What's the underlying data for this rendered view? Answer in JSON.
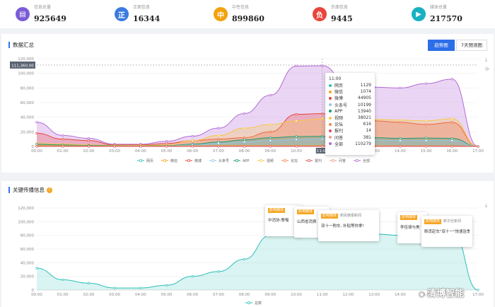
{
  "stats": [
    {
      "glyph": "▤",
      "label": "信息总量",
      "value": "925649",
      "color": "#7b5cd6"
    },
    {
      "glyph": "正",
      "label": "正面信息",
      "value": "16344",
      "color": "#3b7be0"
    },
    {
      "glyph": "中",
      "label": "中性信息",
      "value": "899860",
      "color": "#f2a20c"
    },
    {
      "glyph": "负",
      "label": "负面信息",
      "value": "9445",
      "color": "#e8453c"
    },
    {
      "glyph": "▶",
      "label": "媒体总量",
      "value": "217570",
      "color": "#17b1c1"
    }
  ],
  "panel1": {
    "title": "数据汇总",
    "toggle_trend": "趋势图",
    "toggle_forecast": "7天预测图",
    "crosshair_label": "111,360.00"
  },
  "tooltip": {
    "time": "11:00",
    "rows": [
      {
        "name": "网页",
        "value": "1129",
        "color": "#2fc0b8"
      },
      {
        "name": "微信",
        "value": "1074",
        "color": "#f5a623"
      },
      {
        "name": "微博",
        "value": "44905",
        "color": "#e8453c"
      },
      {
        "name": "头条号",
        "value": "10199",
        "color": "#8fc8e8"
      },
      {
        "name": "APP",
        "value": "13940",
        "color": "#1d9b72"
      },
      {
        "name": "视频",
        "value": "38021",
        "color": "#f7c744"
      },
      {
        "name": "论坛",
        "value": "616",
        "color": "#f08a4b"
      },
      {
        "name": "报刊",
        "value": "14",
        "color": "#d94e5d"
      },
      {
        "name": "问答",
        "value": "381",
        "color": "#f29a8e"
      },
      {
        "name": "全部",
        "value": "110279",
        "color": "#b36ad6"
      }
    ]
  },
  "panel2": {
    "title": "关键传播信息",
    "warn_glyph": "!",
    "popups": [
      {
        "tag": "影响媒体",
        "source": "",
        "title": "中消协:警惕"
      },
      {
        "tag": "影响媒体",
        "source": "",
        "title": "山西省消费"
      },
      {
        "tag": "影响媒体",
        "source": "新民晚报新闻",
        "title": "双十一购车, 补贴等你拿!"
      },
      {
        "tag": "影响媒体",
        "source": "",
        "title": "李佳琦与美"
      },
      {
        "tag": "影响媒体",
        "source": "新华社新闻",
        "title": "断货赶车\"双十一\"快速驻季"
      }
    ]
  },
  "watermark": "清博智能",
  "download_glyph": "⤓",
  "chart_data": [
    {
      "type": "area",
      "x": [
        "00:00",
        "01:00",
        "02:00",
        "03:00",
        "04:00",
        "05:00",
        "06:00",
        "07:00",
        "08:00",
        "09:00",
        "10:00",
        "11:00",
        "12:00",
        "13:00",
        "14:00",
        "15:00",
        "16:00",
        "17:00"
      ],
      "ylim": [
        0,
        120000
      ],
      "yticks": [
        "0",
        "20,000",
        "40,000",
        "60,000",
        "80,000",
        "100,000",
        "120,000"
      ],
      "series": [
        {
          "name": "网页",
          "color": "#2fc0b8",
          "values": [
            200,
            150,
            120,
            100,
            100,
            150,
            300,
            500,
            800,
            1000,
            1100,
            1129,
            1050,
            1000,
            950,
            900,
            900,
            0
          ]
        },
        {
          "name": "微信",
          "color": "#f5a623",
          "values": [
            1000,
            800,
            600,
            400,
            300,
            400,
            800,
            1000,
            1100,
            1100,
            1100,
            1074,
            1000,
            1000,
            900,
            900,
            900,
            0
          ]
        },
        {
          "name": "微博",
          "color": "#e8453c",
          "values": [
            18000,
            10000,
            8000,
            2000,
            2000,
            4000,
            8000,
            10000,
            12000,
            20000,
            44000,
            44905,
            40000,
            35000,
            33000,
            30000,
            33000,
            0
          ]
        },
        {
          "name": "头条号",
          "color": "#8fc8e8",
          "values": [
            1000,
            900,
            700,
            500,
            400,
            600,
            2000,
            4000,
            6000,
            8000,
            9500,
            10199,
            9000,
            8500,
            8000,
            8000,
            8000,
            0
          ]
        },
        {
          "name": "APP",
          "color": "#1d9b72",
          "values": [
            3000,
            2000,
            1500,
            800,
            600,
            1000,
            3000,
            6000,
            9000,
            12000,
            13500,
            13940,
            13000,
            12000,
            11000,
            11500,
            11000,
            0
          ]
        },
        {
          "name": "视频",
          "color": "#f7c744",
          "values": [
            4000,
            3000,
            2000,
            1500,
            1500,
            2000,
            8000,
            15000,
            25000,
            30000,
            35000,
            38021,
            38000,
            37000,
            36000,
            35000,
            38000,
            0
          ]
        },
        {
          "name": "论坛",
          "color": "#f08a4b",
          "values": [
            300,
            250,
            200,
            150,
            150,
            200,
            400,
            500,
            550,
            600,
            610,
            616,
            600,
            580,
            560,
            550,
            560,
            0
          ]
        },
        {
          "name": "报刊",
          "color": "#d94e5d",
          "values": [
            5,
            5,
            4,
            3,
            3,
            4,
            8,
            10,
            12,
            13,
            14,
            14,
            13,
            12,
            12,
            12,
            12,
            0
          ]
        },
        {
          "name": "问答",
          "color": "#f29a8e",
          "values": [
            100,
            80,
            60,
            50,
            50,
            60,
            150,
            250,
            300,
            350,
            370,
            381,
            370,
            360,
            350,
            350,
            350,
            0
          ]
        },
        {
          "name": "全部",
          "color": "#b36ad6",
          "values": [
            33000,
            15000,
            11000,
            3000,
            3000,
            7000,
            14000,
            25000,
            45000,
            70000,
            110000,
            110279,
            85000,
            81000,
            80000,
            86000,
            92000,
            0
          ]
        }
      ]
    },
    {
      "type": "area",
      "x": [
        "00:00",
        "01:00",
        "02:00",
        "03:00",
        "04:00",
        "05:00",
        "06:00",
        "07:00",
        "08:00",
        "09:00",
        "10:00",
        "11:00",
        "12:00",
        "13:00",
        "14:00",
        "15:00",
        "16:00",
        "17:00"
      ],
      "ylim": [
        0,
        120000
      ],
      "yticks": [
        "0",
        "20,000",
        "40,000",
        "60,000",
        "80,000",
        "100,000",
        "120,000"
      ],
      "series": [
        {
          "name": "总数",
          "color": "#2fc0b8",
          "values": [
            32000,
            15000,
            10000,
            3000,
            3000,
            7000,
            20000,
            27000,
            45000,
            80000,
            110000,
            110279,
            90000,
            82000,
            80000,
            86000,
            88000,
            0
          ]
        }
      ]
    }
  ]
}
